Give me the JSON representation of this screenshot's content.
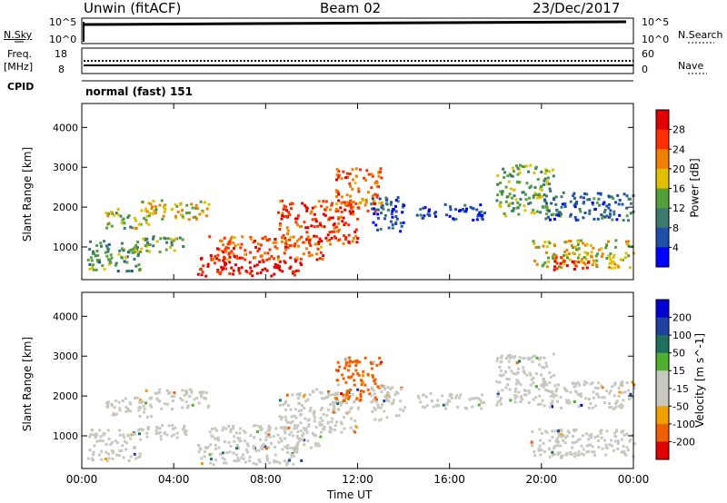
{
  "header": {
    "site": "Unwin (fitACF)",
    "beam": "Beam 02",
    "date": "23/Dec/2017"
  },
  "nsky_panel": {
    "left_label": "N.Sky",
    "ticks_left": [
      "10^5",
      "10^0"
    ],
    "ticks_right": [
      "10^5",
      "10^0"
    ],
    "right_label": "N.Search"
  },
  "freq_panel": {
    "left_label_1": "Freq.",
    "left_label_2": "[MHz]",
    "ticks_left": [
      "18",
      "8"
    ],
    "ticks_right": [
      "60",
      "0"
    ],
    "right_label": "Nave"
  },
  "cpid": {
    "label": "CPID",
    "value": "normal (fast) 151"
  },
  "axes": {
    "ylabel": "Slant Range [km]",
    "xlabel": "Time UT",
    "yticks": [
      "4000",
      "3000",
      "2000",
      "1000"
    ],
    "xticks": [
      "00:00",
      "04:00",
      "08:00",
      "12:00",
      "16:00",
      "20:00",
      "00:00"
    ],
    "xlim_hours": [
      0,
      24
    ],
    "ylim_km": [
      180,
      4600
    ]
  },
  "chart_data": [
    {
      "type": "heatmap",
      "quantity": "Power",
      "colorbar_label": "Power [dB]",
      "colorbar_ticks": [
        "28",
        "24",
        "20",
        "16",
        "12",
        "8",
        "4"
      ],
      "range": [
        0,
        32
      ],
      "colors": [
        "#0000ff",
        "#1f4fa8",
        "#3c7a6e",
        "#55a03a",
        "#e0c000",
        "#f08000",
        "#ff3000",
        "#e00000"
      ]
    },
    {
      "type": "heatmap",
      "quantity": "Velocity",
      "colorbar_label": "Velocity [m s^-1]",
      "colorbar_ticks": [
        "200",
        "100",
        "50",
        "15",
        "-15",
        "-50",
        "-100",
        "-200"
      ],
      "range": [
        -250,
        250
      ],
      "colors": [
        "#e00000",
        "#f06000",
        "#f0a000",
        "#c8c8c0",
        "#c8c8c0",
        "#50b030",
        "#207060",
        "#2040a0",
        "#0000d0"
      ]
    }
  ],
  "echo_regions": [
    {
      "t0": 0.2,
      "t1": 2.5,
      "r0": 400,
      "r1": 1200,
      "power": 12,
      "vel": 0
    },
    {
      "t0": 1.0,
      "t1": 3.0,
      "r0": 1500,
      "r1": 2000,
      "power": 16,
      "vel": 0
    },
    {
      "t0": 2.5,
      "t1": 5.5,
      "r0": 1700,
      "r1": 2200,
      "power": 18,
      "vel": 0
    },
    {
      "t0": 2.0,
      "t1": 4.5,
      "r0": 900,
      "r1": 1300,
      "power": 14,
      "vel": 0
    },
    {
      "t0": 5.0,
      "t1": 9.5,
      "r0": 300,
      "r1": 800,
      "power": 30,
      "vel": 0
    },
    {
      "t0": 5.5,
      "t1": 10.5,
      "r0": 700,
      "r1": 1300,
      "power": 24,
      "vel": 0
    },
    {
      "t0": 8.5,
      "t1": 12.0,
      "r0": 1100,
      "r1": 2200,
      "power": 26,
      "vel": 0
    },
    {
      "t0": 11.0,
      "t1": 13.0,
      "r0": 1900,
      "r1": 3000,
      "power": 24,
      "vel": -150
    },
    {
      "t0": 12.5,
      "t1": 14.0,
      "r0": 1400,
      "r1": 2300,
      "power": 6,
      "vel": 0
    },
    {
      "t0": 14.5,
      "t1": 17.5,
      "r0": 1700,
      "r1": 2100,
      "power": 5,
      "vel": 0
    },
    {
      "t0": 18.0,
      "t1": 20.5,
      "r0": 1800,
      "r1": 3100,
      "power": 14,
      "vel": 0
    },
    {
      "t0": 19.5,
      "t1": 24.0,
      "r0": 500,
      "r1": 1200,
      "power": 18,
      "vel": 0
    },
    {
      "t0": 20.5,
      "t1": 22.0,
      "r0": 450,
      "r1": 800,
      "power": 28,
      "vel": 0
    },
    {
      "t0": 20.0,
      "t1": 24.0,
      "r0": 1700,
      "r1": 2400,
      "power": 8,
      "vel": 0
    }
  ]
}
